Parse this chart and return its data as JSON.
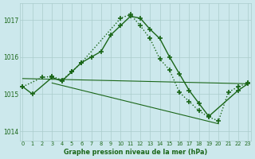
{
  "title": "Graphe pression niveau de la mer (hPa)",
  "background_color": "#cce8ec",
  "grid_color": "#aacccc",
  "line_color": "#1a6618",
  "ylim": [
    1013.75,
    1017.45
  ],
  "yticks": [
    1014,
    1015,
    1016,
    1017
  ],
  "xlim": [
    -0.3,
    23.3
  ],
  "xtick_labels": [
    "0",
    "1",
    "2",
    "3",
    "4",
    "5",
    "6",
    "7",
    "8",
    "9",
    "10",
    "11",
    "12",
    "13",
    "14",
    "15",
    "16",
    "17",
    "18",
    "19",
    "20",
    "21",
    "22",
    "23"
  ],
  "curve1_x": [
    0,
    1,
    3,
    4,
    5,
    6,
    7,
    8,
    9,
    10,
    11,
    12,
    13,
    14,
    15,
    16,
    17,
    18,
    19,
    22,
    23
  ],
  "curve1_y": [
    1015.2,
    1015.0,
    1015.45,
    1015.35,
    1015.6,
    1015.85,
    1016.0,
    1016.15,
    1016.6,
    1016.85,
    1017.1,
    1017.05,
    1016.75,
    1016.5,
    1016.0,
    1015.55,
    1015.1,
    1014.75,
    1014.4,
    1015.1,
    1015.28
  ],
  "curve2_x": [
    0,
    2,
    3,
    4,
    5,
    6,
    10,
    11,
    12,
    13,
    14,
    15,
    16,
    17,
    18,
    19,
    20,
    21,
    22,
    23
  ],
  "curve2_y": [
    1015.2,
    1015.45,
    1015.48,
    1015.38,
    1015.6,
    1015.85,
    1017.05,
    1017.15,
    1016.85,
    1016.5,
    1015.95,
    1015.65,
    1015.05,
    1014.8,
    1014.55,
    1014.38,
    1014.28,
    1015.05,
    1015.2,
    1015.3
  ],
  "flat_line_x": [
    0,
    23
  ],
  "flat_line_y": [
    1015.42,
    1015.28
  ],
  "diag_line_x": [
    3,
    20
  ],
  "diag_line_y": [
    1015.3,
    1014.2
  ]
}
